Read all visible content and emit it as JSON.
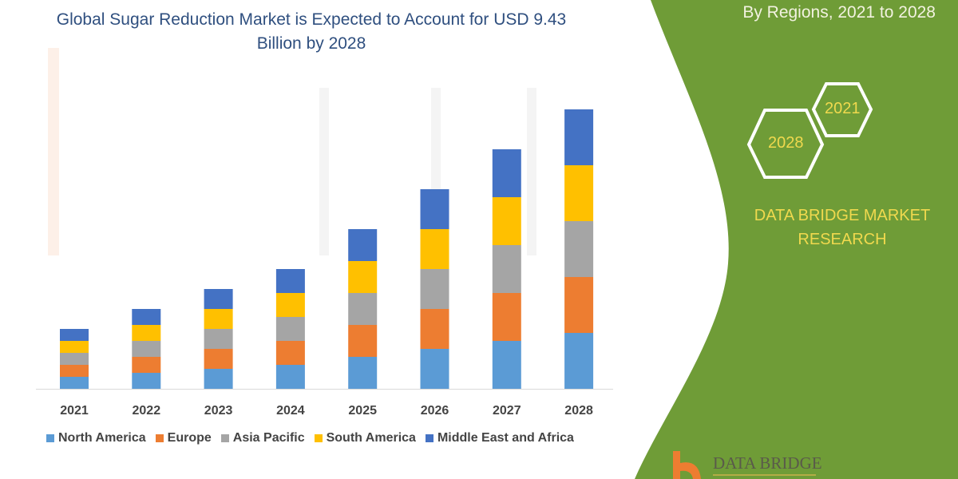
{
  "header": {
    "title": "Global Sugar Reduction Market is Expected to Account for USD 9.43 Billion by 2028",
    "subtitle": "By Regions, 2021 to 2028"
  },
  "side_panel": {
    "hex_years": [
      "2028",
      "2021"
    ],
    "brand": "DATA BRIDGE MARKET RESEARCH",
    "logo_text": "DATA BRIDGE",
    "background_color": "#6f9c37",
    "accent_text_color": "#f0d94e"
  },
  "chart_data": {
    "type": "bar",
    "stacked": true,
    "title": "Global Sugar Reduction Market is Expected to Account for USD 9.43 Billion by 2028",
    "xlabel": "",
    "ylabel": "",
    "y_axis_shown": false,
    "grid": false,
    "legend_position": "bottom",
    "ylim": [
      0,
      360
    ],
    "categories": [
      "2021",
      "2022",
      "2023",
      "2024",
      "2025",
      "2026",
      "2027",
      "2028"
    ],
    "series": [
      {
        "name": "North America",
        "color": "#5b9bd5",
        "values": [
          15,
          20,
          25,
          30,
          40,
          50,
          60,
          70
        ]
      },
      {
        "name": "Europe",
        "color": "#ed7d31",
        "values": [
          15,
          20,
          25,
          30,
          40,
          50,
          60,
          70
        ]
      },
      {
        "name": "Asia Pacific",
        "color": "#a5a5a5",
        "values": [
          15,
          20,
          25,
          30,
          40,
          50,
          60,
          70
        ]
      },
      {
        "name": "South America",
        "color": "#ffc000",
        "values": [
          15,
          20,
          25,
          30,
          40,
          50,
          60,
          70
        ]
      },
      {
        "name": "Middle East and Africa",
        "color": "#4472c4",
        "values": [
          15,
          20,
          25,
          30,
          40,
          50,
          60,
          70
        ]
      }
    ]
  }
}
